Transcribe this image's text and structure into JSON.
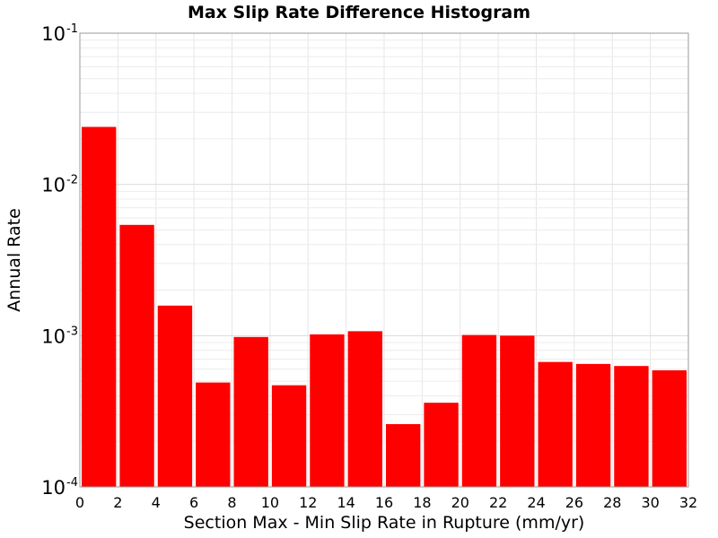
{
  "chart_data": {
    "type": "bar",
    "title": "Max Slip Rate Difference Histogram",
    "xlabel": "Section Max - Min Slip Rate in Rupture (mm/yr)",
    "ylabel": "Annual Rate",
    "xlim": [
      0,
      32
    ],
    "ylim": [
      0.0001,
      0.1
    ],
    "yscale": "log",
    "bar_color": "#ff0000",
    "grid": true,
    "xticks": [
      "0",
      "2",
      "4",
      "6",
      "8",
      "10",
      "12",
      "14",
      "16",
      "18",
      "20",
      "22",
      "24",
      "26",
      "28",
      "30",
      "32"
    ],
    "yticks": [
      {
        "base": "10",
        "exp": "-1",
        "value": 0.1
      },
      {
        "base": "10",
        "exp": "-2",
        "value": 0.01
      },
      {
        "base": "10",
        "exp": "-3",
        "value": 0.001
      },
      {
        "base": "10",
        "exp": "-4",
        "value": 0.0001
      }
    ],
    "bins": [
      {
        "x0": 0,
        "x1": 2,
        "value": 0.024
      },
      {
        "x0": 2,
        "x1": 4,
        "value": 0.0054
      },
      {
        "x0": 4,
        "x1": 6,
        "value": 0.00158
      },
      {
        "x0": 6,
        "x1": 8,
        "value": 0.00049
      },
      {
        "x0": 8,
        "x1": 10,
        "value": 0.00098
      },
      {
        "x0": 10,
        "x1": 12,
        "value": 0.00047
      },
      {
        "x0": 12,
        "x1": 14,
        "value": 0.00102
      },
      {
        "x0": 14,
        "x1": 16,
        "value": 0.00107
      },
      {
        "x0": 16,
        "x1": 18,
        "value": 0.00026
      },
      {
        "x0": 18,
        "x1": 20,
        "value": 0.00036
      },
      {
        "x0": 20,
        "x1": 22,
        "value": 0.00101
      },
      {
        "x0": 22,
        "x1": 24,
        "value": 0.001
      },
      {
        "x0": 24,
        "x1": 26,
        "value": 0.00067
      },
      {
        "x0": 26,
        "x1": 28,
        "value": 0.00065
      },
      {
        "x0": 28,
        "x1": 30,
        "value": 0.00063
      },
      {
        "x0": 30,
        "x1": 32,
        "value": 0.00059
      }
    ]
  }
}
